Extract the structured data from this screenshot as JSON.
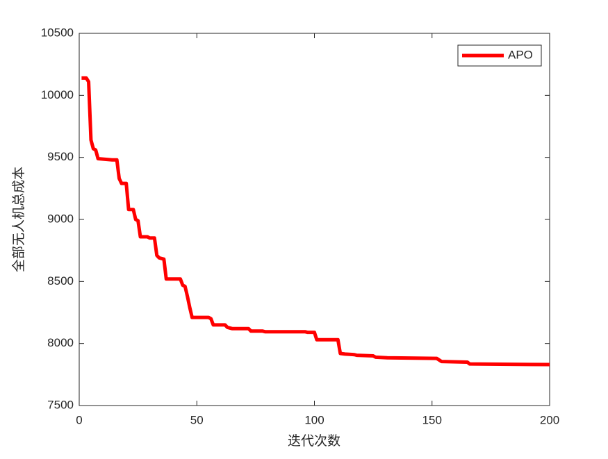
{
  "chart_data": {
    "type": "line",
    "xlabel": "迭代次数",
    "ylabel": "全部无人机总成本",
    "x": [
      1,
      3,
      4,
      5,
      6,
      7,
      8,
      14,
      16,
      17,
      18,
      20,
      21,
      23,
      24,
      25,
      26,
      29,
      30,
      32,
      33,
      34,
      36,
      37,
      43,
      44,
      45,
      46,
      47,
      48,
      55,
      56,
      57,
      62,
      63,
      65,
      72,
      73,
      78,
      79,
      96,
      97,
      100,
      101,
      110,
      111,
      113,
      117,
      118,
      125,
      126,
      131,
      152,
      154,
      165,
      166,
      200
    ],
    "series": [
      {
        "name": "APO",
        "color": "#ff0000",
        "values": [
          10140,
          10140,
          10110,
          9640,
          9570,
          9560,
          9490,
          9480,
          9480,
          9330,
          9290,
          9290,
          9080,
          9080,
          9000,
          8990,
          8860,
          8860,
          8850,
          8850,
          8710,
          8690,
          8680,
          8520,
          8520,
          8470,
          8460,
          8380,
          8290,
          8210,
          8210,
          8200,
          8150,
          8150,
          8130,
          8120,
          8120,
          8100,
          8100,
          8095,
          8095,
          8090,
          8090,
          8030,
          8030,
          7920,
          7915,
          7910,
          7905,
          7900,
          7890,
          7885,
          7880,
          7855,
          7850,
          7835,
          7830
        ]
      }
    ],
    "xlim": [
      0,
      200
    ],
    "ylim": [
      7500,
      10500
    ],
    "xticks": [
      0,
      50,
      100,
      150,
      200
    ],
    "yticks": [
      7500,
      8000,
      8500,
      9000,
      9500,
      10000,
      10500
    ],
    "legend": "upper right",
    "grid": false
  }
}
